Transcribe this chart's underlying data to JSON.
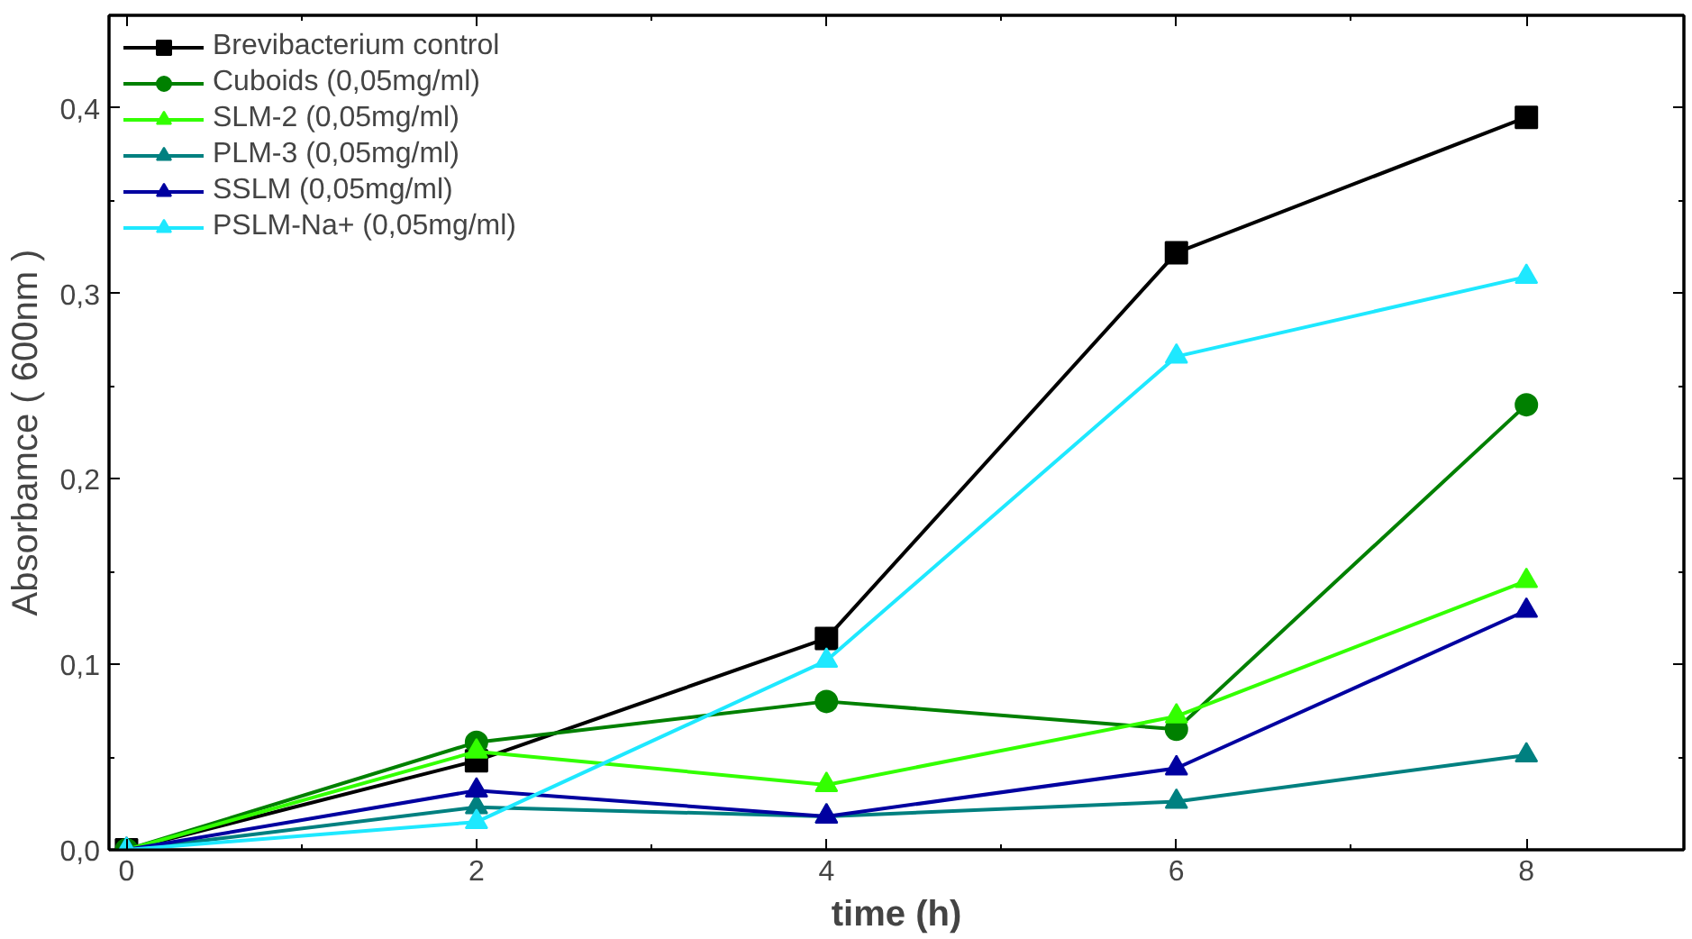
{
  "chart_data": {
    "type": "line",
    "xlabel": "time (h)",
    "ylabel": "Absorbamce ( 600nm )",
    "x": [
      0,
      2,
      4,
      6,
      8
    ],
    "xlim": [
      -0.1,
      8.9
    ],
    "ylim": [
      0,
      0.45
    ],
    "xticks": [
      0,
      2,
      4,
      6,
      8
    ],
    "yticks": [
      {
        "value": 0,
        "label": "0,0"
      },
      {
        "value": 0.1,
        "label": "0,1"
      },
      {
        "value": 0.2,
        "label": "0,2"
      },
      {
        "value": 0.3,
        "label": "0,3"
      },
      {
        "value": 0.4,
        "label": "0,4"
      }
    ],
    "grid": false,
    "legend": "top left",
    "series": [
      {
        "name": "Brevibacterium control",
        "color": "#000000",
        "marker": "square",
        "values": [
          0,
          0.048,
          0.114,
          0.322,
          0.395
        ]
      },
      {
        "name": "Cuboids (0,05mg/ml)",
        "color": "#008000",
        "marker": "circle",
        "values": [
          0,
          0.058,
          0.08,
          0.065,
          0.24
        ]
      },
      {
        "name": "SLM-2 (0,05mg/ml)",
        "color": "#33ff00",
        "marker": "triangle",
        "values": [
          0,
          0.053,
          0.035,
          0.072,
          0.145
        ]
      },
      {
        "name": "PLM-3 (0,05mg/ml)",
        "color": "#008080",
        "marker": "triangle",
        "values": [
          0,
          0.023,
          0.018,
          0.026,
          0.051
        ]
      },
      {
        "name": "SSLM (0,05mg/ml)",
        "color": "#0000a0",
        "marker": "triangle",
        "values": [
          0,
          0.032,
          0.018,
          0.044,
          0.129
        ]
      },
      {
        "name": "PSLM-Na+ (0,05mg/ml)",
        "color": "#1ee8ff",
        "marker": "triangle",
        "values": [
          0,
          0.015,
          0.102,
          0.266,
          0.309
        ]
      }
    ]
  }
}
